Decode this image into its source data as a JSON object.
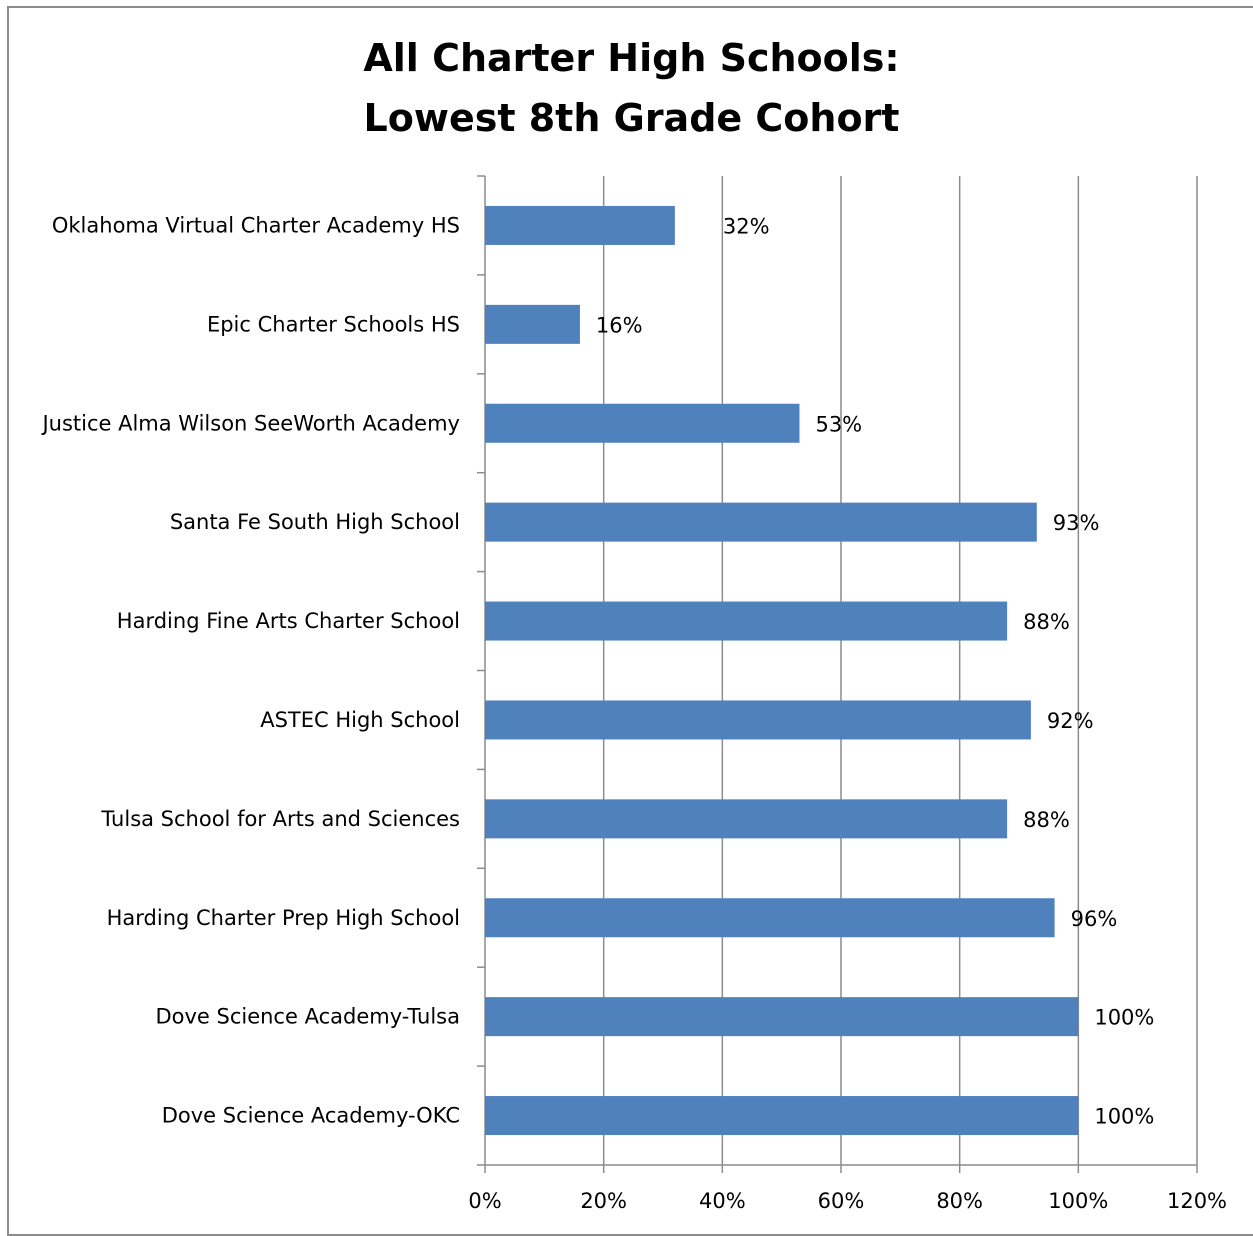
{
  "chart_data": {
    "type": "bar",
    "orientation": "horizontal",
    "title": [
      "All Charter High Schools:",
      "Lowest 8th Grade Cohort"
    ],
    "xlabel": "",
    "ylabel": "",
    "xlim": [
      0,
      120
    ],
    "x_ticks": [
      "0%",
      "20%",
      "40%",
      "60%",
      "80%",
      "100%",
      "120%"
    ],
    "x_tick_values": [
      0,
      20,
      40,
      60,
      80,
      100,
      120
    ],
    "grid": true,
    "legend": "none",
    "bar_color": "#4f81bd",
    "categories": [
      "Oklahoma Virtual Charter Academy HS",
      "Epic Charter Schools HS",
      "Justice Alma Wilson SeeWorth Academy",
      "Santa Fe South High School",
      "Harding Fine Arts Charter School",
      "ASTEC High School",
      "Tulsa School for Arts and Sciences",
      "Harding Charter Prep High School",
      "Dove Science Academy-Tulsa",
      "Dove Science Academy-OKC"
    ],
    "values": [
      32,
      16,
      53,
      93,
      88,
      92,
      88,
      96,
      100,
      100
    ],
    "data_labels": [
      "32%",
      "16%",
      "53%",
      "93%",
      "88%",
      "92%",
      "88%",
      "96%",
      "100%",
      "100%"
    ]
  }
}
